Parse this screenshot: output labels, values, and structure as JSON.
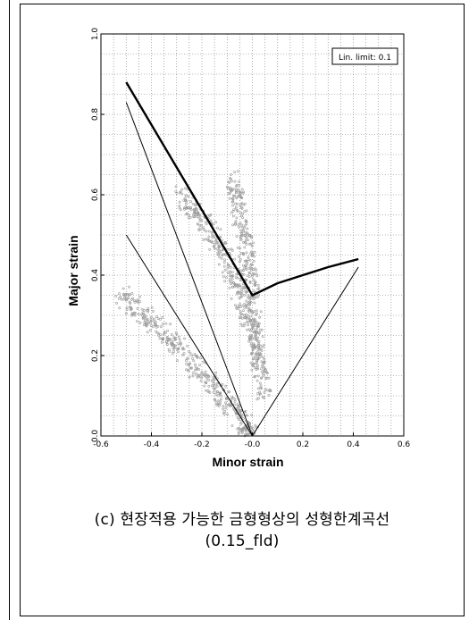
{
  "chart_data": {
    "type": "line",
    "xlabel": "Minor strain",
    "ylabel": "Major strain",
    "xlim": [
      -0.6,
      0.6
    ],
    "ylim": [
      0.0,
      1.0
    ],
    "xticks": [
      "-0.6",
      "-0.4",
      "-0.2",
      "-0.0",
      "0.2",
      "0.4",
      "0.6"
    ],
    "yticks": [
      "0.0",
      "0.2",
      "0.4",
      "0.6",
      "0.8",
      "1.0"
    ],
    "grid": true,
    "annotation": "Lin. limit: 0.1",
    "annotation_position": "top-right",
    "series": [
      {
        "style": "thick",
        "x": [
          -0.5,
          0.0,
          0.1,
          0.2,
          0.3,
          0.42
        ],
        "y": [
          0.88,
          0.35,
          0.38,
          0.4,
          0.42,
          0.44
        ]
      },
      {
        "style": "thin",
        "x": [
          -0.5,
          0.0,
          0.42
        ],
        "y": [
          0.83,
          0.0,
          0.42
        ]
      },
      {
        "style": "thin",
        "x": [
          -0.5,
          0.0
        ],
        "y": [
          0.5,
          0.0
        ]
      }
    ],
    "scatter_regions": [
      {
        "x": [
          -0.52,
          -0.42,
          -0.32,
          -0.22,
          -0.12,
          -0.04,
          0.0
        ],
        "y": [
          0.35,
          0.3,
          0.24,
          0.17,
          0.1,
          0.04,
          0.0
        ]
      },
      {
        "x": [
          -0.28,
          -0.2,
          -0.12,
          -0.06,
          -0.02,
          0.02,
          0.05
        ],
        "y": [
          0.6,
          0.54,
          0.46,
          0.38,
          0.3,
          0.2,
          0.1
        ]
      },
      {
        "x": [
          -0.08,
          -0.05,
          -0.02,
          0.0,
          0.02
        ],
        "y": [
          0.64,
          0.55,
          0.45,
          0.35,
          0.2
        ]
      }
    ]
  },
  "caption": {
    "line1": "(c) 현장적용 가능한 금형형상의 성형한계곡선",
    "line2": "(0.15_fld)"
  }
}
